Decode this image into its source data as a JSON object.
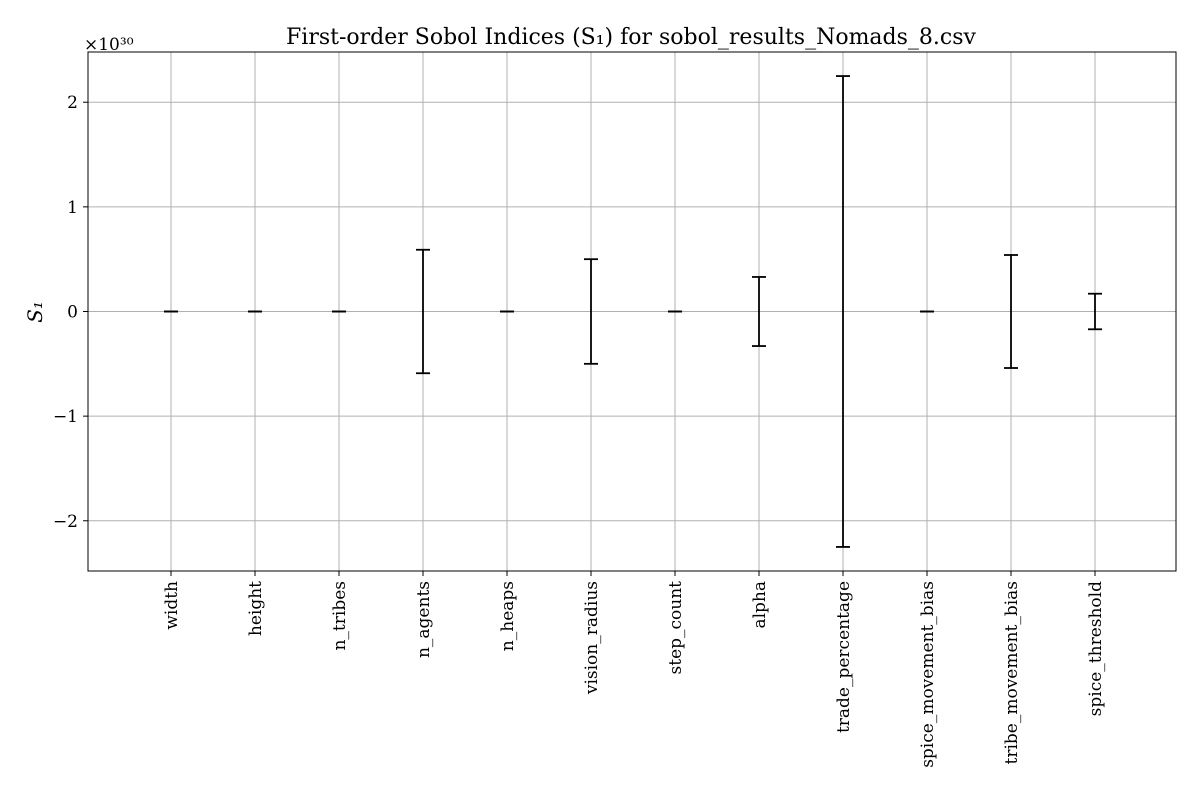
{
  "chart_data": {
    "type": "errorbar",
    "title": "First-order Sobol Indices (S₁) for sobol_results_Nomads_8.csv",
    "ylabel": "S₁",
    "xlabel": "",
    "y_exponent_label": "×10³⁰",
    "y_scale_exponent": 30,
    "ylim": [
      -2.48,
      2.48
    ],
    "yticks": [
      -2,
      -1,
      0,
      1,
      2
    ],
    "ytick_labels": [
      "−2",
      "−1",
      "0",
      "1",
      "2"
    ],
    "grid": true,
    "categories": [
      "width",
      "height",
      "n_tribes",
      "n_agents",
      "n_heaps",
      "vision_radius",
      "step_count",
      "alpha",
      "trade_percentage",
      "spice_movement_bias",
      "tribe_movement_bias",
      "spice_threshold"
    ],
    "values": [
      0,
      0,
      0,
      0,
      0,
      0,
      0,
      0,
      0,
      0,
      0,
      0
    ],
    "errors": [
      0,
      0,
      0,
      0.59,
      0,
      0.5,
      0,
      0.33,
      2.25,
      0,
      0.54,
      0.17
    ]
  }
}
